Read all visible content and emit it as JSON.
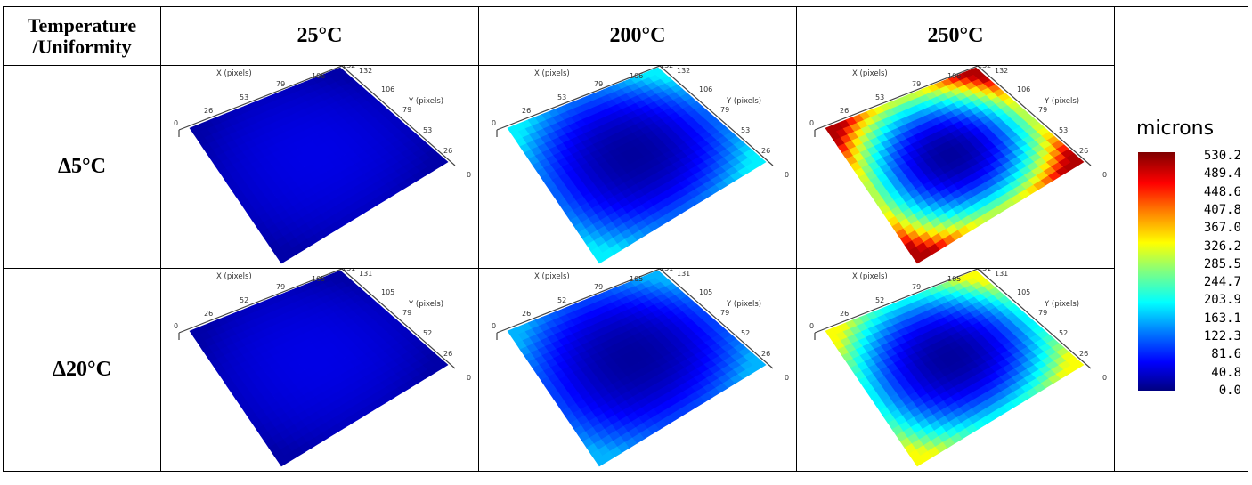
{
  "table": {
    "corner_label_line1": "Temperature",
    "corner_label_line2": "/Uniformity",
    "columns": [
      "25°C",
      "200°C",
      "250°C"
    ],
    "rows": [
      {
        "label": "Δ5°C",
        "axis_x_label": "X (pixels)",
        "axis_y_label": "Y (pixels)",
        "x_ticks": [
          "0",
          "26",
          "53",
          "79",
          "106",
          "132"
        ],
        "y_ticks": [
          "132",
          "106",
          "79",
          "53",
          "26",
          "0"
        ]
      },
      {
        "label": "Δ20°C",
        "axis_x_label": "X (pixels)",
        "axis_y_label": "Y (pixels)",
        "x_ticks": [
          "0",
          "26",
          "52",
          "79",
          "105",
          "131"
        ],
        "y_ticks": [
          "131",
          "105",
          "79",
          "52",
          "26",
          "0"
        ]
      }
    ]
  },
  "legend": {
    "title": "microns",
    "ticks": [
      "530.2",
      "489.4",
      "448.6",
      "407.8",
      "367.0",
      "326.2",
      "285.5",
      "244.7",
      "203.9",
      "163.1",
      "122.3",
      "81.6",
      "40.8",
      "0.0"
    ],
    "colors": [
      "#00007f",
      "#0000ff",
      "#0080ff",
      "#00ffff",
      "#80ff80",
      "#ffff00",
      "#ff8000",
      "#ff0000",
      "#7f0000"
    ]
  }
}
